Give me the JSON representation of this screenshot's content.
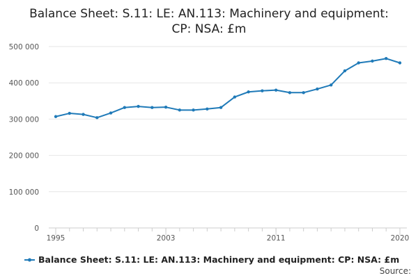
{
  "chart_data": {
    "type": "line",
    "title_lines": [
      "Balance Sheet: S.11: LE: AN.113: Machinery and equipment:",
      "CP: NSA: £m"
    ],
    "xlabel": "",
    "ylabel": "",
    "x_ticks": [
      1995,
      2003,
      2011,
      2020
    ],
    "x_tick_labels": [
      "1995",
      "2003",
      "2011",
      "2020"
    ],
    "y_ticks": [
      0,
      100000,
      200000,
      300000,
      400000,
      500000
    ],
    "y_tick_labels": [
      "0",
      "100 000",
      "200 000",
      "300 000",
      "400 000",
      "500 000"
    ],
    "ylim": [
      0,
      500000
    ],
    "xlim": [
      1995,
      2020
    ],
    "grid": "horizontal",
    "legend_position": "bottom",
    "series": [
      {
        "name": "Balance Sheet: S.11: LE: AN.113: Machinery and equipment: CP: NSA: £m",
        "color": "#1f7ab8",
        "x": [
          1995,
          1996,
          1997,
          1998,
          1999,
          2000,
          2001,
          2002,
          2003,
          2004,
          2005,
          2006,
          2007,
          2008,
          2009,
          2010,
          2011,
          2012,
          2013,
          2014,
          2015,
          2016,
          2017,
          2018,
          2019,
          2020
        ],
        "values": [
          307000,
          316000,
          313000,
          304000,
          317000,
          332000,
          335000,
          332000,
          333000,
          325000,
          325000,
          328000,
          332000,
          361000,
          375000,
          378000,
          380000,
          373000,
          373000,
          383000,
          394000,
          433000,
          455000,
          460000,
          467000,
          455000
        ]
      }
    ]
  },
  "footer": {
    "source_label": "Source:"
  }
}
